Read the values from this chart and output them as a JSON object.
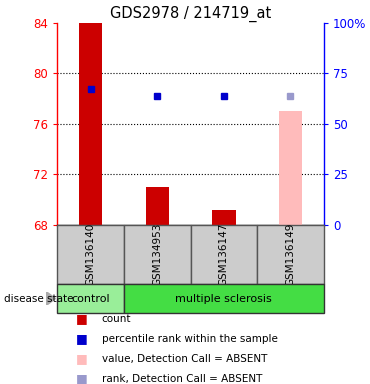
{
  "title": "GDS2978 / 214719_at",
  "samples": [
    "GSM136140",
    "GSM134953",
    "GSM136147",
    "GSM136149"
  ],
  "ylim_left": [
    68,
    84
  ],
  "ylim_right": [
    0,
    100
  ],
  "yticks_left": [
    68,
    72,
    76,
    80,
    84
  ],
  "yticks_right": [
    0,
    25,
    50,
    75,
    100
  ],
  "ytick_labels_right": [
    "0",
    "25",
    "50",
    "75",
    "100%"
  ],
  "bar_values": [
    84.0,
    71.0,
    69.2,
    77.0
  ],
  "bar_colors": [
    "#cc0000",
    "#cc0000",
    "#cc0000",
    "#ffbbbb"
  ],
  "bar_bottom": 68,
  "dot_values": [
    78.8,
    78.2,
    78.2,
    78.2
  ],
  "dot_colors": [
    "#0000cc",
    "#0000cc",
    "#0000cc",
    "#9999cc"
  ],
  "control_color": "#99ee99",
  "ms_color": "#44dd44",
  "label_bg_color": "#cccccc",
  "grid_color": "#555555",
  "bar_width": 0.35,
  "legend_items": [
    {
      "color": "#cc0000",
      "label": "count"
    },
    {
      "color": "#0000cc",
      "label": "percentile rank within the sample"
    },
    {
      "color": "#ffbbbb",
      "label": "value, Detection Call = ABSENT"
    },
    {
      "color": "#9999cc",
      "label": "rank, Detection Call = ABSENT"
    }
  ]
}
